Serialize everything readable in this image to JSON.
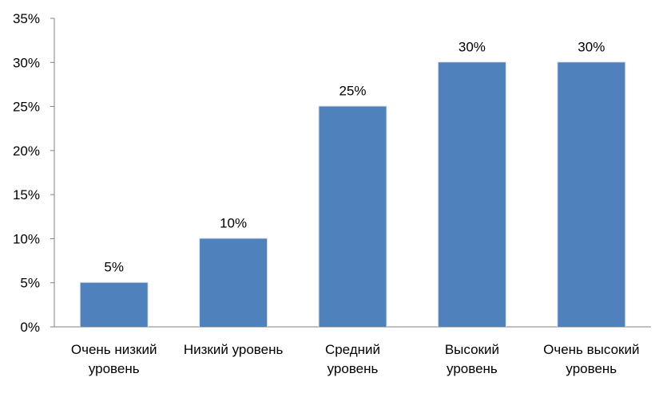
{
  "chart_data": {
    "type": "bar",
    "categories": [
      [
        "Очень низкий",
        "уровень"
      ],
      [
        "Низкий уровень"
      ],
      [
        "Средний",
        "уровень"
      ],
      [
        "Высокий",
        "уровень"
      ],
      [
        "Очень высокий",
        "уровень"
      ]
    ],
    "values": [
      5,
      10,
      25,
      30,
      30
    ],
    "data_labels": [
      "5%",
      "10%",
      "25%",
      "30%",
      "30%"
    ],
    "y_ticks": [
      "0%",
      "5%",
      "10%",
      "15%",
      "20%",
      "25%",
      "30%",
      "35%"
    ],
    "ylim": [
      0,
      35
    ],
    "title": "",
    "xlabel": "",
    "ylabel": "",
    "grid": false,
    "legend": "none",
    "colors": {
      "bar": "#4F81BD",
      "axis": "#808080",
      "text": "#000000"
    }
  }
}
